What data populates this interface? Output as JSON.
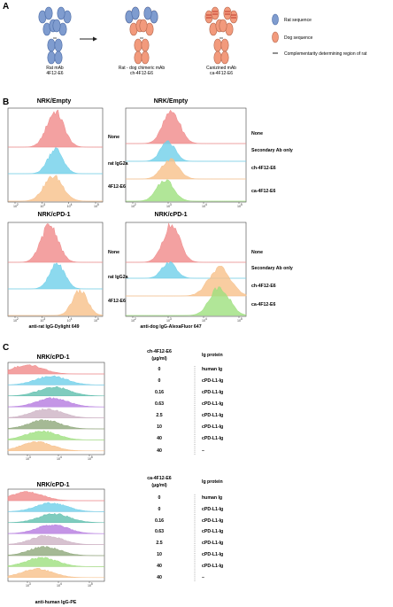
{
  "panelA": {
    "letter": "A",
    "antibodies": [
      {
        "line1": "Rat mAb",
        "line2": "4F12-E6"
      },
      {
        "line1": "Rat - dog chimeric mAb",
        "line2": "ch-4F12-E6"
      },
      {
        "line1": "Canizined mAb",
        "line2": "ca-4F12-E6"
      }
    ],
    "legend": {
      "rat": "Rat sequence",
      "dog": "Dog sequence",
      "cdr": "Complementarity determining region of rat"
    },
    "colors": {
      "rat": "#7f9ccf",
      "dog": "#f29a7c",
      "cdr": "#d9534f"
    }
  },
  "panelB": {
    "letter": "B",
    "panels": [
      {
        "title": "NRK/Empty",
        "rows": [
          "None",
          "rat IgG2a",
          "4F12-E6"
        ]
      },
      {
        "title": "NRK/Empty",
        "rows": [
          "None",
          "Secondary Ab only",
          "ch-4F12-E6",
          "ca-4F12-E6"
        ]
      },
      {
        "title": "NRK/cPD-1",
        "rows": [
          "None",
          "rat IgG2a",
          "4F12-E6"
        ]
      },
      {
        "title": "NRK/cPD-1",
        "rows": [
          "None",
          "Secondary Ab only",
          "ch-4F12-E6",
          "ca-4F12-E6"
        ]
      }
    ],
    "xlabel_left": "anti-rat IgG-Dylight 649",
    "xlabel_right": "anti-dog IgG-AlexaFluor 647",
    "ticks": {
      "t2": "10",
      "t3": "10",
      "t4": "10",
      "t5": "10",
      "e2": "2",
      "e3": "3",
      "e4": "4",
      "e5": "5"
    }
  },
  "panelC": {
    "letter": "C",
    "blocks": [
      {
        "title": "NRK/cPD-1",
        "conc_header1": "ch-4F12-E6",
        "conc_header2": "(μg/ml)",
        "protein_header": "Ig protein",
        "rows": [
          {
            "conc": "0",
            "protein": "human Ig"
          },
          {
            "conc": "0",
            "protein": "cPD-L1-Ig"
          },
          {
            "conc": "0.16",
            "protein": "cPD-L1-Ig"
          },
          {
            "conc": "0.63",
            "protein": "cPD-L1-Ig"
          },
          {
            "conc": "2.5",
            "protein": "cPD-L1-Ig"
          },
          {
            "conc": "10",
            "protein": "cPD-L1-Ig"
          },
          {
            "conc": "40",
            "protein": "cPD-L1-Ig"
          },
          {
            "conc": "40",
            "protein": "–"
          }
        ]
      },
      {
        "title": "NRK/cPD-1",
        "conc_header1": "ca-4F12-E6",
        "conc_header2": "(μg/ml)",
        "protein_header": "Ig protein",
        "rows": [
          {
            "conc": "0",
            "protein": "human Ig"
          },
          {
            "conc": "0",
            "protein": "cPD-L1-Ig"
          },
          {
            "conc": "0.16",
            "protein": "cPD-L1-Ig"
          },
          {
            "conc": "0.63",
            "protein": "cPD-L1-Ig"
          },
          {
            "conc": "2.5",
            "protein": "cPD-L1-Ig"
          },
          {
            "conc": "10",
            "protein": "cPD-L1-Ig"
          },
          {
            "conc": "40",
            "protein": "cPD-L1-Ig"
          },
          {
            "conc": "40",
            "protein": "–"
          }
        ]
      }
    ],
    "xlabel": "anti-human IgG-PE"
  },
  "histogram_colors": {
    "red": "#f08a8a",
    "blue": "#6fd0ea",
    "orange": "#f7c08a",
    "green": "#9ee07e",
    "teal": "#5fbfae",
    "purple": "#b57be0",
    "mauve": "#cdb3c4",
    "olive": "#8fa87a"
  }
}
